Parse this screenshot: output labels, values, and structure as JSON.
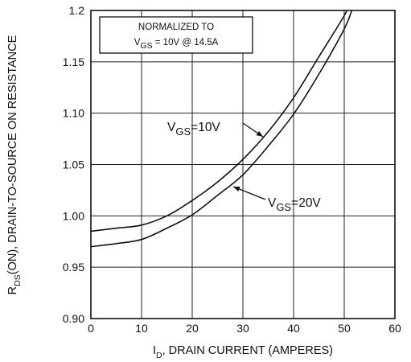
{
  "chart_data": {
    "type": "line",
    "xlabel": {
      "main": "I",
      "sub": "D",
      "rest": ", DRAIN CURRENT (AMPERES)"
    },
    "ylabel": {
      "main": "R",
      "sub": "DS",
      "rest": "(ON), DRAIN-TO-SOURCE ON RESISTANCE"
    },
    "xlim": [
      0,
      60
    ],
    "ylim": [
      0.9,
      1.2
    ],
    "x_ticks": [
      0,
      10,
      20,
      30,
      40,
      50,
      60
    ],
    "x_tick_labels": [
      "0",
      "10",
      "20",
      "30",
      "40",
      "50",
      "60"
    ],
    "y_ticks": [
      0.9,
      0.95,
      1.0,
      1.05,
      1.1,
      1.15,
      1.2
    ],
    "y_tick_labels": [
      "0.90",
      "0.95",
      "1.00",
      "1.05",
      "1.10",
      "1.15",
      "1.2"
    ],
    "grid": true,
    "annotation": {
      "line1": "NORMALIZED  TO",
      "vgs_main": "V",
      "vgs_sub": "GS",
      "vgs_rest": " = 10V   @   14.5A"
    },
    "series": [
      {
        "label_main": "V",
        "label_sub": "GS",
        "label_rest": "=10V",
        "x": [
          0,
          5,
          10,
          15,
          20,
          25,
          30,
          35,
          40,
          45,
          50,
          52.5
        ],
        "y": [
          0.985,
          0.988,
          0.991,
          1.0,
          1.015,
          1.033,
          1.055,
          1.082,
          1.115,
          1.155,
          1.195,
          1.22
        ]
      },
      {
        "label_main": "V",
        "label_sub": "GS",
        "label_rest": "=20V",
        "x": [
          0,
          5,
          10,
          15,
          20,
          25,
          30,
          35,
          40,
          45,
          50,
          51.5
        ],
        "y": [
          0.97,
          0.973,
          0.977,
          0.988,
          1.001,
          1.02,
          1.04,
          1.068,
          1.099,
          1.138,
          1.182,
          1.2
        ]
      }
    ]
  }
}
